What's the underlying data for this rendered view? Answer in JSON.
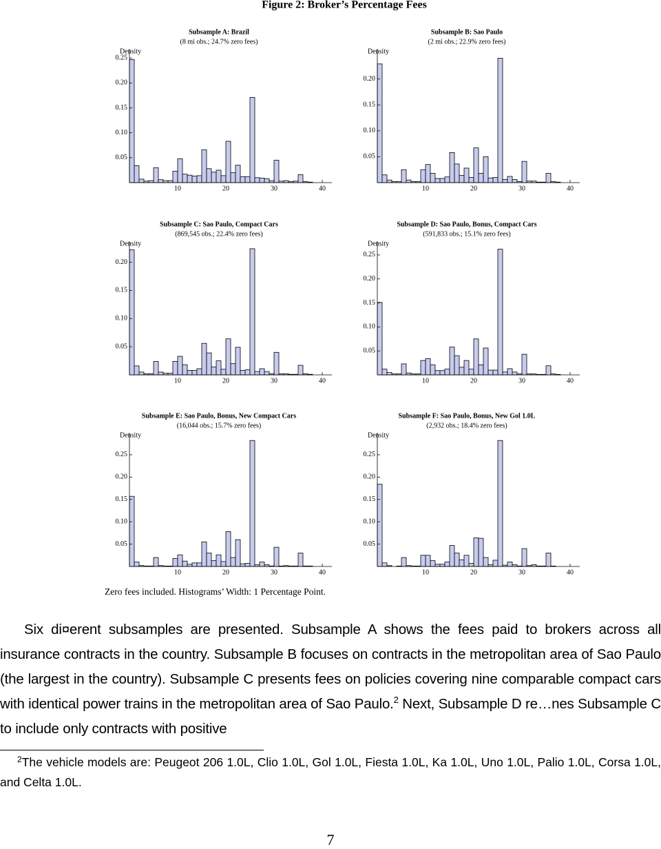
{
  "title": "Figure 2: Broker’s Percentage Fees",
  "chart_data": [
    {
      "type": "histogram",
      "title": "Subsample A: Brazil",
      "subtitle": "(8 mi obs.; 24.7% zero fees)",
      "y_label": "Density",
      "bins": [
        0,
        1,
        2,
        3,
        4,
        5,
        6,
        7,
        8,
        9,
        10,
        11,
        12,
        13,
        14,
        15,
        16,
        17,
        18,
        19,
        20,
        21,
        22,
        23,
        24,
        25,
        26,
        27,
        28,
        29,
        30,
        31,
        32,
        33,
        34,
        35,
        36,
        37,
        38
      ],
      "values": [
        0.247,
        0.034,
        0.007,
        0.003,
        0.004,
        0.03,
        0.006,
        0.004,
        0.004,
        0.023,
        0.048,
        0.017,
        0.015,
        0.013,
        0.014,
        0.066,
        0.028,
        0.021,
        0.025,
        0.014,
        0.083,
        0.02,
        0.035,
        0.012,
        0.012,
        0.171,
        0.01,
        0.009,
        0.008,
        0.004,
        0.045,
        0.003,
        0.004,
        0.002,
        0.003,
        0.016,
        0.002,
        0.001
      ],
      "color": "#c6cbef",
      "xlim": [
        0,
        42
      ],
      "xticks": [
        10,
        20,
        30,
        40
      ],
      "ylim": [
        0,
        0.26
      ],
      "yticks": [
        0.05,
        {
          "value": 0.1,
          "label": "0.10"
        },
        0.15,
        {
          "value": 0.2,
          "label": "0.20"
        },
        0.25
      ]
    },
    {
      "type": "histogram",
      "title": "Subsample B: Sao Paulo",
      "subtitle": "(2 mi obs.; 22.9% zero fees)",
      "y_label": "Density",
      "bins": [
        0,
        1,
        2,
        3,
        4,
        5,
        6,
        7,
        8,
        9,
        10,
        11,
        12,
        13,
        14,
        15,
        16,
        17,
        18,
        19,
        20,
        21,
        22,
        23,
        24,
        25,
        26,
        27,
        28,
        29,
        30,
        31,
        32,
        33,
        34,
        35,
        36,
        37,
        38
      ],
      "values": [
        0.229,
        0.015,
        0.005,
        0.002,
        0.002,
        0.025,
        0.005,
        0.002,
        0.002,
        0.025,
        0.035,
        0.018,
        0.008,
        0.008,
        0.011,
        0.058,
        0.036,
        0.014,
        0.028,
        0.01,
        0.067,
        0.018,
        0.05,
        0.009,
        0.01,
        0.24,
        0.006,
        0.012,
        0.006,
        0.002,
        0.041,
        0.003,
        0.003,
        0.001,
        0.001,
        0.018,
        0.002,
        0.001
      ],
      "color": "#c6cbef",
      "xlim": [
        0,
        42
      ],
      "xticks": [
        10,
        20,
        30,
        40
      ],
      "ylim": [
        0,
        0.25
      ],
      "yticks": [
        0.05,
        {
          "value": 0.1,
          "label": "0.10"
        },
        0.15,
        {
          "value": 0.2,
          "label": "0.20"
        }
      ]
    },
    {
      "type": "histogram",
      "title": "Subsample C: Sao Paulo, Compact Cars",
      "subtitle": "(869,545 obs.; 22.4% zero fees)",
      "y_label": "Density",
      "bins": [
        0,
        1,
        2,
        3,
        4,
        5,
        6,
        7,
        8,
        9,
        10,
        11,
        12,
        13,
        14,
        15,
        16,
        17,
        18,
        19,
        20,
        21,
        22,
        23,
        24,
        25,
        26,
        27,
        28,
        29,
        30,
        31,
        32,
        33,
        34,
        35,
        36,
        37,
        38
      ],
      "values": [
        0.222,
        0.016,
        0.005,
        0.002,
        0.002,
        0.024,
        0.005,
        0.003,
        0.003,
        0.024,
        0.033,
        0.018,
        0.008,
        0.008,
        0.011,
        0.056,
        0.039,
        0.014,
        0.025,
        0.01,
        0.064,
        0.02,
        0.049,
        0.008,
        0.009,
        0.224,
        0.006,
        0.011,
        0.006,
        0.002,
        0.04,
        0.002,
        0.002,
        0.001,
        0.001,
        0.017,
        0.002,
        0.001
      ],
      "color": "#c6cbef",
      "xlim": [
        0,
        42
      ],
      "xticks": [
        10,
        20,
        30,
        40
      ],
      "ylim": [
        0,
        0.23
      ],
      "yticks": [
        0.05,
        {
          "value": 0.1,
          "label": "0.10"
        },
        0.15,
        {
          "value": 0.2,
          "label": "0.20"
        }
      ]
    },
    {
      "type": "histogram",
      "title": "Subsample D: Sao Paulo, Bonus, Compact Cars",
      "subtitle": "(591,833 obs.; 15.1% zero fees)",
      "y_label": "Density",
      "bins": [
        0,
        1,
        2,
        3,
        4,
        5,
        6,
        7,
        8,
        9,
        10,
        11,
        12,
        13,
        14,
        15,
        16,
        17,
        18,
        19,
        20,
        21,
        22,
        23,
        24,
        25,
        26,
        27,
        28,
        29,
        30,
        31,
        32,
        33,
        34,
        35,
        36,
        37,
        38
      ],
      "values": [
        0.151,
        0.012,
        0.005,
        0.002,
        0.002,
        0.023,
        0.004,
        0.002,
        0.002,
        0.03,
        0.034,
        0.021,
        0.009,
        0.009,
        0.012,
        0.058,
        0.04,
        0.016,
        0.03,
        0.012,
        0.075,
        0.021,
        0.056,
        0.01,
        0.01,
        0.262,
        0.006,
        0.013,
        0.006,
        0.002,
        0.043,
        0.002,
        0.002,
        0.001,
        0.001,
        0.019,
        0.002,
        0.001
      ],
      "color": "#c6cbef",
      "xlim": [
        0,
        42
      ],
      "xticks": [
        10,
        20,
        30,
        40
      ],
      "ylim": [
        0,
        0.27
      ],
      "yticks": [
        0.05,
        {
          "value": 0.1,
          "label": "0.10"
        },
        0.15,
        {
          "value": 0.2,
          "label": "0.20"
        },
        0.25
      ]
    },
    {
      "type": "histogram",
      "title": "Subsample E: Sao Paulo, Bonus, New Compact Cars",
      "subtitle": "(16,044 obs.; 15.7% zero fees)",
      "y_label": "Density",
      "bins": [
        0,
        1,
        2,
        3,
        4,
        5,
        6,
        7,
        8,
        9,
        10,
        11,
        12,
        13,
        14,
        15,
        16,
        17,
        18,
        19,
        20,
        21,
        22,
        23,
        24,
        25,
        26,
        27,
        28,
        29,
        30,
        31,
        32,
        33,
        34,
        35,
        36,
        37,
        38
      ],
      "values": [
        0.157,
        0.01,
        0.002,
        0.001,
        0.001,
        0.02,
        0.002,
        0.001,
        0.001,
        0.018,
        0.026,
        0.012,
        0.005,
        0.008,
        0.008,
        0.055,
        0.03,
        0.013,
        0.026,
        0.011,
        0.078,
        0.02,
        0.06,
        0.006,
        0.007,
        0.282,
        0.004,
        0.01,
        0.004,
        0.001,
        0.043,
        0.001,
        0.002,
        0.001,
        0.001,
        0.03,
        0.001,
        0.001
      ],
      "color": "#c6cbef",
      "xlim": [
        0,
        42
      ],
      "xticks": [
        10,
        20,
        30,
        40
      ],
      "ylim": [
        0,
        0.29
      ],
      "yticks": [
        0.05,
        {
          "value": 0.1,
          "label": "0.10"
        },
        0.15,
        {
          "value": 0.2,
          "label": "0.20"
        },
        0.25
      ]
    },
    {
      "type": "histogram",
      "title": "Subsample F: Sao Paulo, Bonus, New Gol 1.0L",
      "subtitle": "(2,932 obs.; 18.4% zero fees)",
      "y_label": "Density",
      "bins": [
        0,
        1,
        2,
        3,
        4,
        5,
        6,
        7,
        8,
        9,
        10,
        11,
        12,
        13,
        14,
        15,
        16,
        17,
        18,
        19,
        20,
        21,
        22,
        23,
        24,
        25,
        26,
        27,
        28,
        29,
        30,
        31,
        32,
        33,
        34,
        35,
        36,
        37,
        38
      ],
      "values": [
        0.184,
        0.008,
        0.002,
        0,
        0.001,
        0.02,
        0.002,
        0.001,
        0.001,
        0.025,
        0.025,
        0.013,
        0.005,
        0.005,
        0.01,
        0.047,
        0.03,
        0.015,
        0.025,
        0.007,
        0.064,
        0.063,
        0.02,
        0.004,
        0.014,
        0.282,
        0.003,
        0.01,
        0.004,
        0.001,
        0.04,
        0.002,
        0.004,
        0.001,
        0.001,
        0.03,
        0.001,
        0
      ],
      "color": "#c6cbef",
      "xlim": [
        0,
        42
      ],
      "xticks": [
        10,
        20,
        30,
        40
      ],
      "ylim": [
        0,
        0.29
      ],
      "yticks": [
        0.05,
        {
          "value": 0.1,
          "label": "0.10"
        },
        0.15,
        {
          "value": 0.2,
          "label": "0.20"
        },
        0.25
      ]
    }
  ],
  "caption": "Zero fees included. Histograms’ Width: 1 Percentage Point.",
  "body": {
    "text_before": "Six di¤erent subsamples are presented. Subsample A shows the fees paid to brokers across all insurance contracts in the country. Subsample B focuses on contracts in the metropolitan area of Sao Paulo (the largest in the country). Subsample C presents fees on policies covering nine comparable compact cars with identical power trains in the metropolitan area of Sao Paulo.",
    "footnote_mark": "2",
    "text_after": "Next, Subsample D re…nes Subsample C to include only contracts with positive"
  },
  "footnote": {
    "mark": "2",
    "text": "The vehicle models are: Peugeot 206 1.0L, Clio 1.0L, Gol 1.0L, Fiesta 1.0L, Ka 1.0L, Uno 1.0L, Palio 1.0L, Corsa 1.0L, and Celta 1.0L."
  },
  "page_number": "7"
}
